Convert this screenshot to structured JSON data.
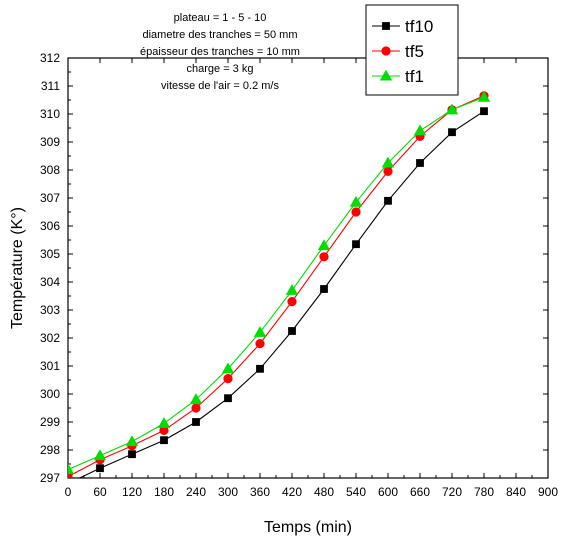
{
  "chart_data": {
    "type": "line",
    "xlabel": "Temps (min)",
    "ylabel": "Température (K°)",
    "xlim": [
      0,
      900
    ],
    "ylim": [
      297,
      312
    ],
    "xticks": [
      0,
      60,
      120,
      180,
      240,
      300,
      360,
      420,
      480,
      540,
      600,
      660,
      720,
      780,
      840,
      900
    ],
    "yticks": [
      297,
      298,
      299,
      300,
      301,
      302,
      303,
      304,
      305,
      306,
      307,
      308,
      309,
      310,
      311,
      312
    ],
    "grid": false,
    "legend_position": "top-right",
    "annotations": [
      "plateau = 1 - 5 - 10",
      "diametre des tranches = 50 mm",
      "épaisseur des tranches = 10 mm",
      "charge = 3 kg",
      "vitesse de l'air = 0.2 m/s"
    ],
    "x": [
      0,
      60,
      120,
      180,
      240,
      300,
      360,
      420,
      480,
      540,
      600,
      660,
      720,
      780
    ],
    "series": [
      {
        "name": "tf10",
        "marker": "square",
        "color": "#000000",
        "values": [
          296.8,
          297.35,
          297.85,
          298.35,
          299.0,
          299.85,
          300.9,
          302.25,
          303.75,
          305.35,
          306.9,
          308.25,
          309.35,
          310.1
        ]
      },
      {
        "name": "tf5",
        "marker": "circle",
        "color": "#ff0000",
        "values": [
          297.05,
          297.65,
          298.15,
          298.7,
          299.5,
          300.55,
          301.8,
          303.3,
          304.9,
          306.5,
          307.95,
          309.2,
          310.15,
          310.65
        ]
      },
      {
        "name": "tf1",
        "marker": "triangle",
        "color": "#00dd00",
        "values": [
          297.3,
          297.8,
          298.3,
          298.95,
          299.8,
          300.9,
          302.2,
          303.7,
          305.3,
          306.85,
          308.25,
          309.4,
          310.15,
          310.6
        ]
      }
    ]
  }
}
